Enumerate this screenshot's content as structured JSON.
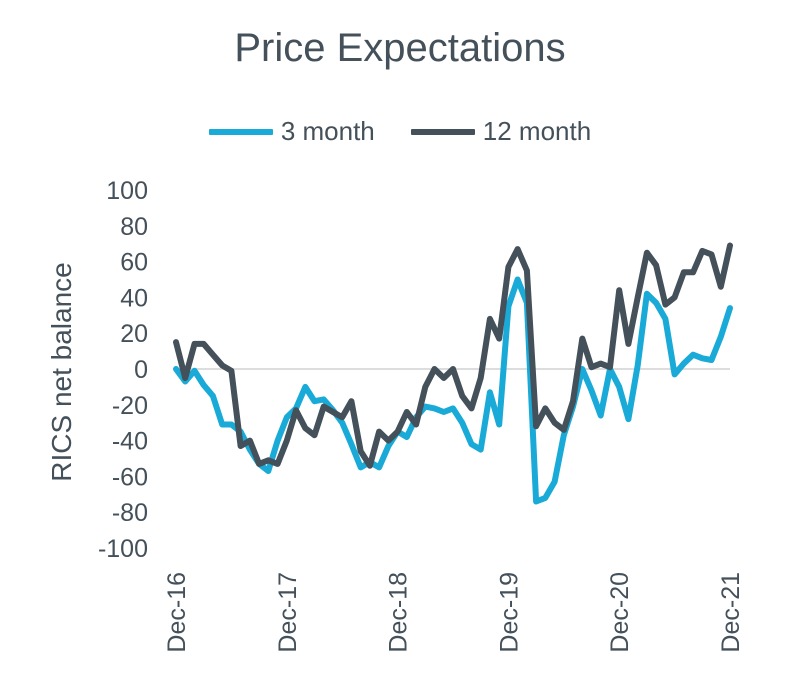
{
  "chart_data": {
    "type": "line",
    "title": "Price Expectations",
    "ylabel": "RICS net balance",
    "xlabel": "",
    "ylim": [
      -100,
      100
    ],
    "yticks": [
      100,
      80,
      60,
      40,
      20,
      0,
      -20,
      -40,
      -60,
      -80,
      -100
    ],
    "xticks": [
      "Dec-16",
      "Dec-17",
      "Dec-18",
      "Dec-19",
      "Dec-20",
      "Dec-21"
    ],
    "x_range_months": [
      0,
      60
    ],
    "legend_position": "top",
    "grid": false,
    "colors": {
      "3 month": "#1aaad8",
      "12 month": "#44505a",
      "zero_line": "#dddddd"
    },
    "series": [
      {
        "name": "3 month",
        "x": [
          0,
          1,
          2,
          3,
          4,
          5,
          6,
          7,
          8,
          9,
          10,
          11,
          12,
          13,
          14,
          15,
          16,
          17,
          18,
          19,
          20,
          21,
          22,
          23,
          24,
          25,
          26,
          27,
          28,
          29,
          30,
          31,
          32,
          33,
          34,
          35,
          36,
          37,
          38,
          39,
          40,
          41,
          42,
          43,
          44,
          45,
          46,
          47,
          48,
          49,
          50,
          51,
          52,
          53,
          54,
          55,
          56,
          57,
          58,
          59,
          60
        ],
        "values": [
          0,
          -7,
          -1,
          -9,
          -15,
          -31,
          -31,
          -35,
          -45,
          -53,
          -57,
          -40,
          -27,
          -22,
          -10,
          -18,
          -17,
          -23,
          -30,
          -42,
          -55,
          -52,
          -55,
          -43,
          -35,
          -38,
          -27,
          -21,
          -22,
          -24,
          -22,
          -30,
          -42,
          -45,
          -13,
          -31,
          35,
          50,
          37,
          -74,
          -72,
          -63,
          -37,
          -21,
          0,
          -12,
          -26,
          0,
          -10,
          -28,
          2,
          42,
          37,
          28,
          -3,
          3,
          8,
          6,
          5,
          18,
          34
        ]
      },
      {
        "name": "12 month",
        "x": [
          0,
          1,
          2,
          3,
          4,
          5,
          6,
          7,
          8,
          9,
          10,
          11,
          12,
          13,
          14,
          15,
          16,
          17,
          18,
          19,
          20,
          21,
          22,
          23,
          24,
          25,
          26,
          27,
          28,
          29,
          30,
          31,
          32,
          33,
          34,
          35,
          36,
          37,
          38,
          39,
          40,
          41,
          42,
          43,
          44,
          45,
          46,
          47,
          48,
          49,
          50,
          51,
          52,
          53,
          54,
          55,
          56,
          57,
          58,
          59,
          60
        ],
        "values": [
          15,
          -5,
          14,
          14,
          8,
          2,
          -1,
          -43,
          -40,
          -53,
          -51,
          -53,
          -40,
          -23,
          -33,
          -37,
          -21,
          -24,
          -27,
          -18,
          -46,
          -54,
          -35,
          -40,
          -35,
          -24,
          -31,
          -10,
          0,
          -5,
          0,
          -15,
          -22,
          -5,
          28,
          17,
          57,
          67,
          55,
          -32,
          -22,
          -30,
          -34,
          -18,
          17,
          1,
          3,
          1,
          44,
          14,
          40,
          65,
          58,
          36,
          40,
          54,
          54,
          66,
          64,
          46,
          69
        ]
      }
    ]
  }
}
